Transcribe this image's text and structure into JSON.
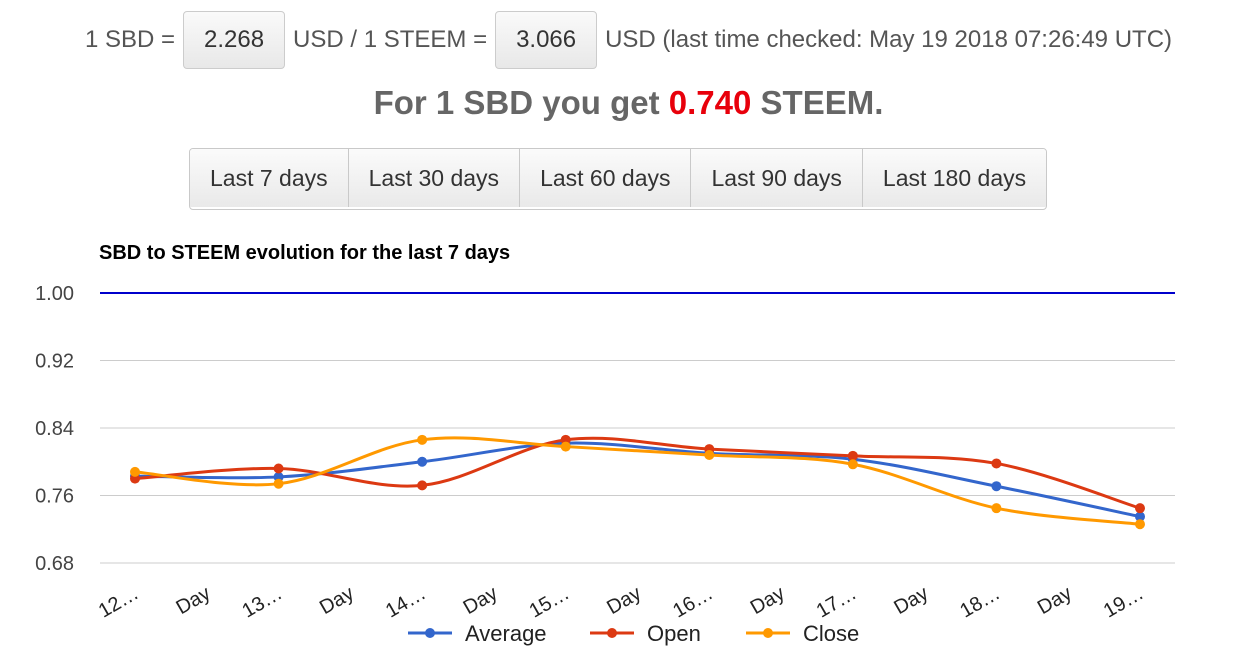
{
  "rates": {
    "prefix": "1 SBD =",
    "sbd_usd": "2.268",
    "mid": "USD / 1 STEEM =",
    "steem_usd": "3.066",
    "suffix": "USD (last time checked: May 19 2018 07:26:49 UTC)"
  },
  "headline": {
    "before": "For 1 SBD you get",
    "ratio": "0.740",
    "after": "STEEM."
  },
  "periods": [
    "Last 7 days",
    "Last 30 days",
    "Last 60 days",
    "Last 90 days",
    "Last 180 days"
  ],
  "chart_data": {
    "type": "line",
    "title": "SBD to STEEM evolution for the last 7 days",
    "x_tick_labels": [
      "12…",
      "Day",
      "13…",
      "Day",
      "14…",
      "Day",
      "15…",
      "Day",
      "16…",
      "Day",
      "17…",
      "Day",
      "18…",
      "Day",
      "19…"
    ],
    "y_ticks": [
      "1.00",
      "0.92",
      "0.84",
      "0.76",
      "0.68"
    ],
    "ylim": [
      0.68,
      1.0
    ],
    "grid": true,
    "legend_position": "bottom",
    "reference_line": {
      "value": 1.0,
      "color": "#0000cc"
    },
    "series": [
      {
        "name": "Average",
        "color": "#3366cc",
        "values": [
          0.783,
          0.782,
          0.8,
          0.822,
          0.81,
          0.803,
          0.771,
          0.735
        ]
      },
      {
        "name": "Open",
        "color": "#dc3912",
        "values": [
          0.78,
          0.792,
          0.772,
          0.826,
          0.815,
          0.807,
          0.798,
          0.745
        ]
      },
      {
        "name": "Close",
        "color": "#ff9900",
        "values": [
          0.788,
          0.774,
          0.826,
          0.818,
          0.808,
          0.797,
          0.745,
          0.726
        ]
      }
    ]
  }
}
